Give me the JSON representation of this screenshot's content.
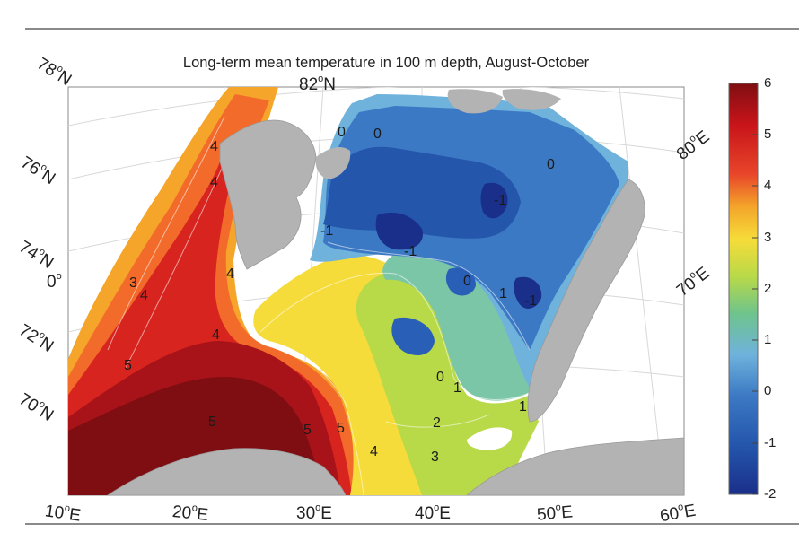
{
  "figure": {
    "title": "Long-term mean temperature in 100 m depth, August-October"
  },
  "map": {
    "lat_labels": [
      {
        "lat": "78",
        "hem": "N"
      },
      {
        "lat": "76",
        "hem": "N"
      },
      {
        "lat": "74",
        "hem": "N"
      },
      {
        "lat": "72",
        "hem": "N"
      },
      {
        "lat": "70",
        "hem": "N"
      }
    ],
    "top_label": {
      "lat": "82",
      "hem": "N"
    },
    "zero_lon_label": {
      "lon": "0",
      "hem": ""
    },
    "lon_labels_bottom": [
      {
        "lon": "10",
        "hem": "E"
      },
      {
        "lon": "20",
        "hem": "E"
      },
      {
        "lon": "30",
        "hem": "E"
      },
      {
        "lon": "40",
        "hem": "E"
      },
      {
        "lon": "50",
        "hem": "E"
      },
      {
        "lon": "60",
        "hem": "E"
      }
    ],
    "lon_labels_right": [
      {
        "lon": "80",
        "hem": "E"
      },
      {
        "lon": "70",
        "hem": "E"
      }
    ],
    "contour_labels": [
      "4",
      "4",
      "4",
      "4",
      "3",
      "4",
      "5",
      "5",
      "5",
      "5",
      "4",
      "3",
      "2",
      "1",
      "0",
      "0",
      "0",
      "0",
      "0",
      "1",
      "-1",
      "-1",
      "-1",
      "-1",
      "1"
    ],
    "colors": {
      "land": "#b3b3b3",
      "ocean_void": "#ffffff"
    }
  },
  "colorbar": {
    "ticks": [
      "6",
      "5",
      "4",
      "3",
      "2",
      "1",
      "0",
      "-1",
      "-2"
    ],
    "min": -2,
    "max": 6,
    "stops": [
      "#7f0e12",
      "#c8141a",
      "#e8452a",
      "#f4a52a",
      "#f6dc3a",
      "#b8d948",
      "#6ec48c",
      "#6fb2dc",
      "#3c79c4",
      "#2456ac",
      "#1a2f8a"
    ]
  }
}
